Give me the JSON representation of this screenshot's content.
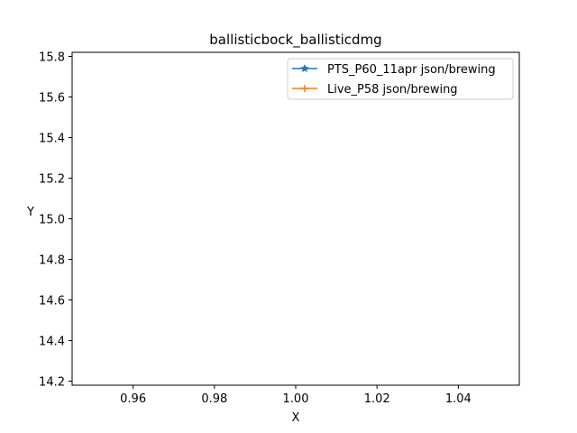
{
  "chart_data": {
    "type": "line",
    "title": "ballisticbock_ballisticdmg",
    "xlabel": "X",
    "ylabel": "Y",
    "xlim": [
      0.945,
      1.055
    ],
    "ylim": [
      14.18,
      15.82
    ],
    "x_ticks": [
      "0.96",
      "0.98",
      "1.00",
      "1.02",
      "1.04"
    ],
    "y_ticks": [
      "14.2",
      "14.4",
      "14.6",
      "14.8",
      "15.0",
      "15.2",
      "15.4",
      "15.6",
      "15.8"
    ],
    "grid": false,
    "legend_position": "top-right",
    "series": [
      {
        "name": "PTS_P60_11apr json/brewing",
        "color": "#1f77b4",
        "marker": "star",
        "x": [],
        "y": []
      },
      {
        "name": "Live_P58 json/brewing",
        "color": "#ff7f0e",
        "marker": "plus",
        "x": [],
        "y": []
      }
    ]
  }
}
